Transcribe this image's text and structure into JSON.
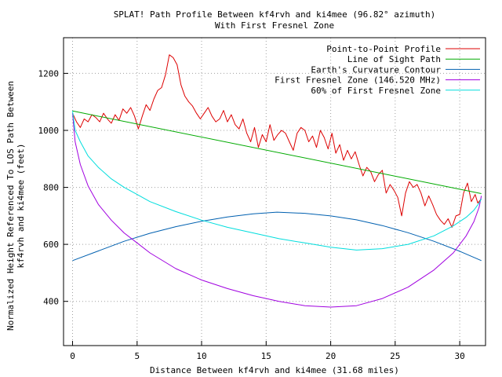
{
  "chart_data": {
    "type": "line",
    "title": "SPLAT! Path Profile Between kf4rvh and ki4mee (96.82° azimuth)",
    "subtitle": "With First Fresnel Zone",
    "xlabel": "Distance Between kf4rvh and ki4mee (31.68 miles)",
    "ylabel_line1": "Normalized Height Referenced To LOS Path Between",
    "ylabel_line2": "kf4rvh and ki4mee (feet)",
    "xlim": [
      -0.7,
      32.0
    ],
    "ylim": [
      245,
      1325
    ],
    "xticks": [
      0,
      5,
      10,
      15,
      20,
      25,
      30
    ],
    "yticks": [
      400,
      600,
      800,
      1000,
      1200
    ],
    "grid": true,
    "legend_position": "top-right",
    "series": [
      {
        "name": "Point-to-Point Profile",
        "color": "#dd0000",
        "x": [
          0,
          0.3,
          0.6,
          0.9,
          1.2,
          1.5,
          1.8,
          2.1,
          2.4,
          2.7,
          3.0,
          3.3,
          3.6,
          3.9,
          4.2,
          4.5,
          4.8,
          5.1,
          5.4,
          5.7,
          6.0,
          6.3,
          6.6,
          6.9,
          7.2,
          7.5,
          7.8,
          8.1,
          8.4,
          8.7,
          9.0,
          9.3,
          9.6,
          9.9,
          10.2,
          10.5,
          10.8,
          11.1,
          11.4,
          11.7,
          12.0,
          12.3,
          12.6,
          12.9,
          13.2,
          13.5,
          13.8,
          14.1,
          14.4,
          14.7,
          15.0,
          15.3,
          15.6,
          15.9,
          16.2,
          16.5,
          16.8,
          17.1,
          17.4,
          17.7,
          18.0,
          18.3,
          18.6,
          18.9,
          19.2,
          19.5,
          19.8,
          20.1,
          20.4,
          20.7,
          21.0,
          21.3,
          21.6,
          21.9,
          22.2,
          22.5,
          22.8,
          23.1,
          23.4,
          23.7,
          24.0,
          24.3,
          24.6,
          24.9,
          25.2,
          25.5,
          25.8,
          26.1,
          26.4,
          26.7,
          27.0,
          27.3,
          27.6,
          27.9,
          28.2,
          28.5,
          28.8,
          29.1,
          29.4,
          29.7,
          30.0,
          30.3,
          30.6,
          30.9,
          31.2,
          31.4,
          31.68
        ],
        "values": [
          1060,
          1030,
          1010,
          1040,
          1030,
          1055,
          1045,
          1030,
          1060,
          1040,
          1025,
          1055,
          1035,
          1075,
          1060,
          1080,
          1050,
          1005,
          1050,
          1090,
          1070,
          1110,
          1140,
          1150,
          1195,
          1265,
          1255,
          1230,
          1160,
          1120,
          1100,
          1085,
          1060,
          1040,
          1060,
          1080,
          1050,
          1030,
          1040,
          1070,
          1030,
          1055,
          1020,
          1005,
          1040,
          990,
          960,
          1010,
          940,
          985,
          960,
          1020,
          965,
          985,
          1000,
          990,
          960,
          930,
          990,
          1010,
          1000,
          960,
          980,
          940,
          1000,
          975,
          935,
          990,
          920,
          950,
          895,
          930,
          900,
          925,
          880,
          840,
          870,
          855,
          820,
          845,
          860,
          780,
          810,
          790,
          765,
          700,
          780,
          820,
          800,
          810,
          780,
          735,
          770,
          740,
          705,
          685,
          670,
          690,
          660,
          700,
          705,
          780,
          815,
          750,
          775,
          745,
          760
        ]
      },
      {
        "name": "Line of Sight Path",
        "color": "#00aa00",
        "x": [
          0,
          31.68
        ],
        "values": [
          1068,
          778
        ]
      },
      {
        "name": "Earth's Curvature Contour",
        "color": "#0060b0",
        "x": [
          0,
          2,
          4,
          6,
          8,
          10,
          12,
          14,
          15.84,
          18,
          20,
          22,
          24,
          26,
          28,
          30,
          31.68
        ],
        "values": [
          543,
          577,
          611,
          639,
          662,
          681,
          696,
          707,
          713,
          709,
          700,
          686,
          666,
          641,
          611,
          576,
          543
        ]
      },
      {
        "name": "First Fresnel Zone (146.520 MHz)",
        "color": "#a000e0",
        "x": [
          0,
          0.2,
          0.6,
          1.2,
          2,
          3,
          4,
          5,
          6,
          8,
          10,
          12,
          14,
          16,
          18,
          20,
          22,
          24,
          26,
          28,
          29.5,
          30.5,
          31.1,
          31.5,
          31.68
        ],
        "values": [
          1060,
          960,
          880,
          805,
          740,
          685,
          640,
          605,
          570,
          515,
          475,
          445,
          420,
          400,
          385,
          380,
          385,
          410,
          450,
          510,
          570,
          630,
          680,
          730,
          770
        ]
      },
      {
        "name": "60% of First Fresnel Zone",
        "color": "#00dddd",
        "x": [
          0,
          0.2,
          0.6,
          1.2,
          2,
          3,
          4,
          5,
          6,
          8,
          10,
          12,
          14,
          16,
          18,
          20,
          22,
          24,
          26,
          28,
          29.5,
          30.5,
          31.1,
          31.5,
          31.68
        ],
        "values": [
          1068,
          1000,
          960,
          910,
          870,
          830,
          800,
          775,
          750,
          715,
          685,
          660,
          640,
          620,
          605,
          590,
          580,
          585,
          600,
          630,
          665,
          695,
          720,
          745,
          760
        ]
      }
    ]
  }
}
